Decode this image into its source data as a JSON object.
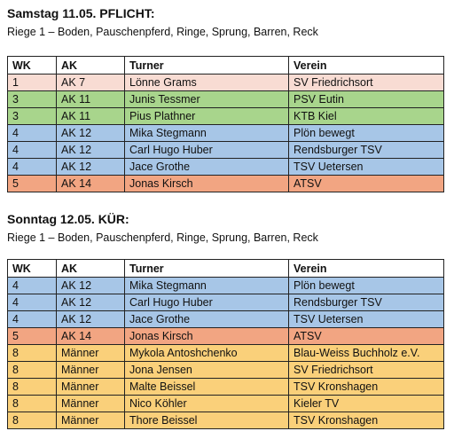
{
  "sections": [
    {
      "title": "Samstag 11.05. PFLICHT:",
      "subtitle": "Riege 1 – Boden, Pauschenpferd, Ringe, Sprung, Barren, Reck",
      "headers": [
        "WK",
        "AK",
        "Turner",
        "Verein"
      ],
      "rows": [
        {
          "wk": "1",
          "ak": "AK 7",
          "turner": "Lönne Grams",
          "verein": "SV Friedrichsort",
          "color": "#f8dcd3"
        },
        {
          "wk": "3",
          "ak": "AK 11",
          "turner": "Junis Tessmer",
          "verein": "PSV Eutin",
          "color": "#a8d58c"
        },
        {
          "wk": "3",
          "ak": "AK 11",
          "turner": "Pius Plathner",
          "verein": "KTB Kiel",
          "color": "#a8d58c"
        },
        {
          "wk": "4",
          "ak": "AK 12",
          "turner": "Mika Stegmann",
          "verein": "Plön bewegt",
          "color": "#a7c6e7"
        },
        {
          "wk": "4",
          "ak": "AK 12",
          "turner": "Carl Hugo Huber",
          "verein": "Rendsburger TSV",
          "color": "#a7c6e7"
        },
        {
          "wk": "4",
          "ak": "AK 12",
          "turner": "Jace Grothe",
          "verein": "TSV Uetersen",
          "color": "#a7c6e7"
        },
        {
          "wk": "5",
          "ak": "AK 14",
          "turner": "Jonas Kirsch",
          "verein": "ATSV",
          "color": "#f2a582"
        }
      ]
    },
    {
      "title": "Sonntag 12.05. KÜR:",
      "subtitle": "Riege 1 – Boden, Pauschenpferd, Ringe, Sprung, Barren, Reck",
      "headers": [
        "WK",
        "AK",
        "Turner",
        "Verein"
      ],
      "rows": [
        {
          "wk": "4",
          "ak": "AK 12",
          "turner": "Mika Stegmann",
          "verein": "Plön bewegt",
          "color": "#a7c6e7"
        },
        {
          "wk": "4",
          "ak": "AK 12",
          "turner": "Carl Hugo Huber",
          "verein": "Rendsburger TSV",
          "color": "#a7c6e7"
        },
        {
          "wk": "4",
          "ak": "AK 12",
          "turner": "Jace Grothe",
          "verein": "TSV Uetersen",
          "color": "#a7c6e7"
        },
        {
          "wk": "5",
          "ak": "AK 14",
          "turner": "Jonas Kirsch",
          "verein": "ATSV",
          "color": "#f2a582"
        },
        {
          "wk": "8",
          "ak": "Männer",
          "turner": "Mykola Antoshchenko",
          "verein": "Blau-Weiss Buchholz e.V.",
          "color": "#fad07a"
        },
        {
          "wk": "8",
          "ak": "Männer",
          "turner": "Jona Jensen",
          "verein": "SV Friedrichsort",
          "color": "#fad07a"
        },
        {
          "wk": "8",
          "ak": "Männer",
          "turner": "Malte Beissel",
          "verein": "TSV Kronshagen",
          "color": "#fad07a"
        },
        {
          "wk": "8",
          "ak": "Männer",
          "turner": "Nico Köhler",
          "verein": "Kieler TV",
          "color": "#fad07a"
        },
        {
          "wk": "8",
          "ak": "Männer",
          "turner": "Thore Beissel",
          "verein": "TSV Kronshagen",
          "color": "#fad07a"
        }
      ]
    }
  ]
}
